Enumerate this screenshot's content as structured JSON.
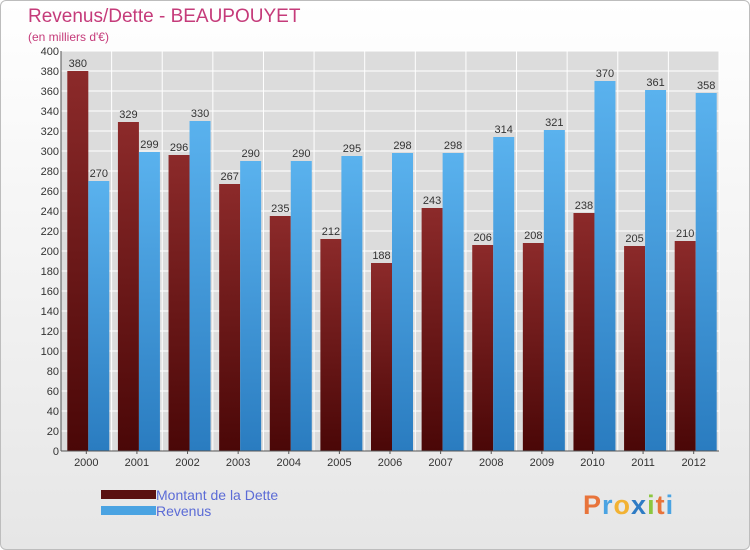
{
  "header": {
    "title": "Revenus/Dette - BEAUPOUYET",
    "subtitle": "(en milliers d'€)"
  },
  "chart_data": {
    "type": "bar",
    "categories": [
      "2000",
      "2001",
      "2002",
      "2003",
      "2004",
      "2005",
      "2006",
      "2007",
      "2008",
      "2009",
      "2010",
      "2011",
      "2012"
    ],
    "series": [
      {
        "name": "Montant de la Dette",
        "values": [
          380,
          329,
          296,
          267,
          235,
          212,
          188,
          243,
          206,
          208,
          238,
          205,
          210
        ],
        "color": "#7a1f1f"
      },
      {
        "name": "Revenus",
        "values": [
          270,
          299,
          330,
          290,
          290,
          295,
          298,
          298,
          314,
          321,
          370,
          361,
          358
        ],
        "color": "#4aa3e2"
      }
    ],
    "title": "Revenus/Dette - BEAUPOUYET",
    "subtitle": "(en milliers d'€)",
    "ylim": [
      0,
      400
    ],
    "yticks": [
      0,
      20,
      40,
      60,
      80,
      100,
      120,
      140,
      160,
      180,
      200,
      220,
      240,
      260,
      280,
      300,
      320,
      340,
      360,
      380,
      400
    ],
    "grid": true,
    "legend_position": "bottom-left"
  },
  "legend": {
    "items": [
      {
        "label": "Montant de la Dette",
        "color": "#7a1f1f"
      },
      {
        "label": "Revenus",
        "color": "#4aa3e2"
      }
    ]
  },
  "logo": {
    "letters": [
      "P",
      "r",
      "o",
      "x",
      "i",
      "t",
      "i"
    ],
    "colors": [
      "#e8743b",
      "#4aa3e2",
      "#f2b233",
      "#2e7bc4",
      "#8cc63f",
      "#e8743b",
      "#4aa3e2"
    ]
  }
}
